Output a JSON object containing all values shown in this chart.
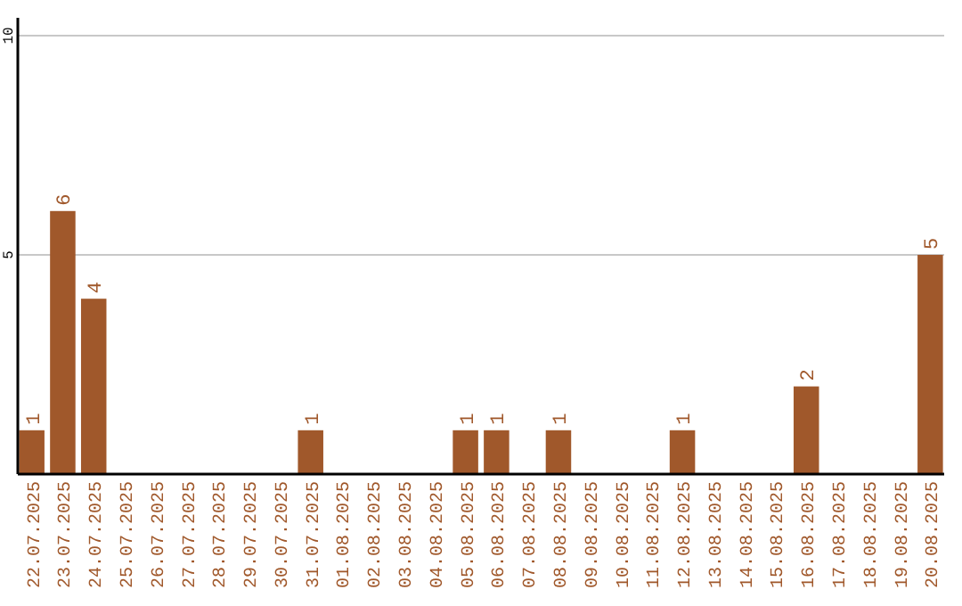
{
  "chart_data": {
    "type": "bar",
    "categories": [
      "22.07.2025",
      "23.07.2025",
      "24.07.2025",
      "25.07.2025",
      "26.07.2025",
      "27.07.2025",
      "28.07.2025",
      "29.07.2025",
      "30.07.2025",
      "31.07.2025",
      "01.08.2025",
      "02.08.2025",
      "03.08.2025",
      "04.08.2025",
      "05.08.2025",
      "06.08.2025",
      "07.08.2025",
      "08.08.2025",
      "09.08.2025",
      "10.08.2025",
      "11.08.2025",
      "12.08.2025",
      "13.08.2025",
      "14.08.2025",
      "15.08.2025",
      "16.08.2025",
      "17.08.2025",
      "18.08.2025",
      "19.08.2025",
      "20.08.2025"
    ],
    "values": [
      1,
      6,
      4,
      0,
      0,
      0,
      0,
      0,
      0,
      1,
      0,
      0,
      0,
      0,
      1,
      1,
      0,
      1,
      0,
      0,
      0,
      1,
      0,
      0,
      0,
      2,
      0,
      0,
      0,
      5
    ],
    "value_labels": [
      "1",
      "6",
      "4",
      null,
      null,
      null,
      null,
      null,
      null,
      "1",
      null,
      null,
      null,
      null,
      "1",
      "1",
      null,
      "1",
      null,
      null,
      null,
      "1",
      null,
      null,
      null,
      "2",
      null,
      null,
      null,
      "5"
    ],
    "color": "#a0582b",
    "ylim": [
      0,
      10
    ],
    "yticks": [
      5,
      10
    ],
    "grid": "y"
  }
}
